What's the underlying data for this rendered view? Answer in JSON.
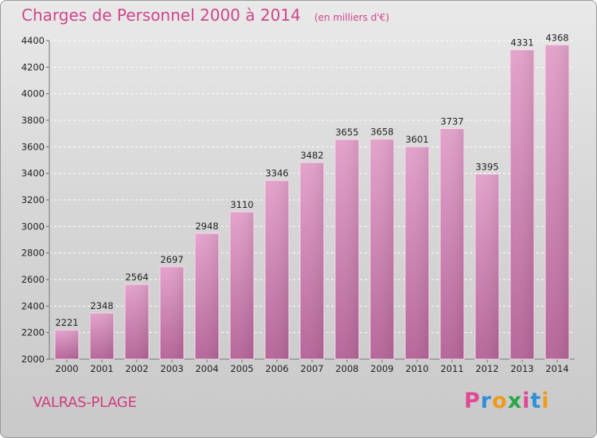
{
  "chart_data": {
    "type": "bar",
    "title": "Charges de Personnel 2000 à 2014",
    "subtitle": "(en milliers d'€)",
    "categories": [
      "2000",
      "2001",
      "2002",
      "2003",
      "2004",
      "2005",
      "2006",
      "2007",
      "2008",
      "2009",
      "2010",
      "2011",
      "2012",
      "2013",
      "2014"
    ],
    "values": [
      2221,
      2348,
      2564,
      2697,
      2948,
      3110,
      3346,
      3482,
      3655,
      3658,
      3601,
      3737,
      3395,
      4331,
      4368
    ],
    "ylim": [
      2000,
      4400
    ],
    "yticks": [
      2000,
      2200,
      2400,
      2600,
      2800,
      3000,
      3200,
      3400,
      3600,
      3800,
      4000,
      4200,
      4400
    ],
    "grid": true,
    "xlabel": "",
    "ylabel": "",
    "bar_color": "#d47fb2"
  },
  "commune": "VALRAS-PLAGE",
  "logo": {
    "p": "P",
    "r": "r",
    "o": "o",
    "x": "x",
    "i1": "i",
    "t": "t",
    "i2": "i"
  },
  "colors": {
    "title": "#d0458a",
    "commune": "#cf3d80"
  }
}
